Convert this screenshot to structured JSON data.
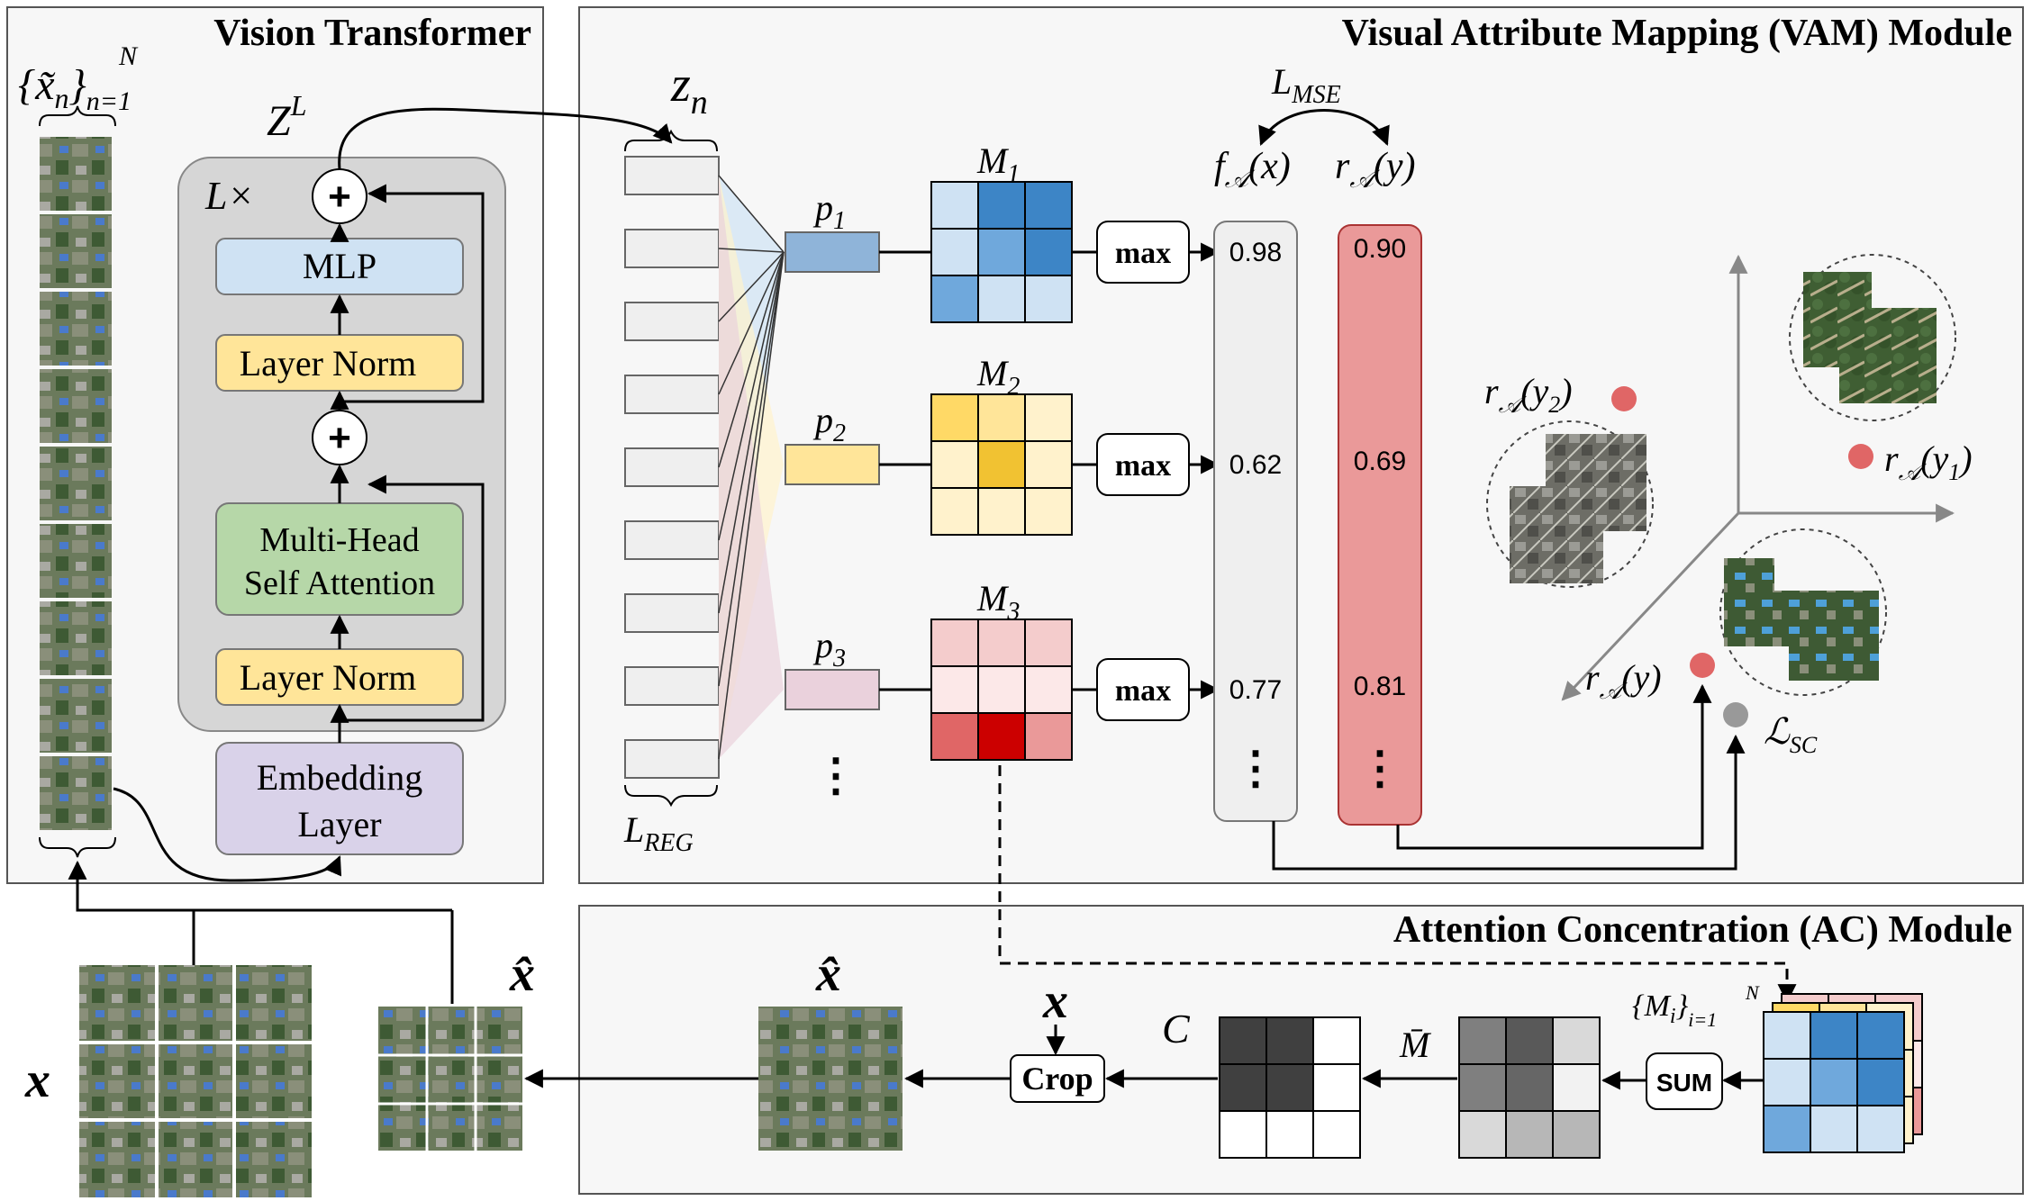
{
  "titles": {
    "vit": "Vision Transformer",
    "vam": "Visual Attribute Mapping (VAM) Module",
    "ac": "Attention Concentration (AC) Module"
  },
  "vit": {
    "patch_set_base": "{x̃",
    "patch_set_sub": "n",
    "patch_set_close": "}",
    "patch_set_subscript": "n=1",
    "patch_set_superscript": "N",
    "zl_base": "Z",
    "zl_sup": "L",
    "repeat_label": "L×",
    "blocks": {
      "mlp": "MLP",
      "layer_norm_top": "Layer Norm",
      "mhsa_line1": "Multi-Head",
      "mhsa_line2": "Self Attention",
      "layer_norm_bottom": "Layer Norm",
      "embed_line1": "Embedding",
      "embed_line2": "Layer"
    },
    "plus": "+",
    "colors": {
      "panel": "#d6d6d6",
      "mlp": "#cfe2f3",
      "layer_norm": "#ffe599",
      "mhsa": "#b6d7a8",
      "embed": "#d9d2e9"
    }
  },
  "vam": {
    "zn_base": "z",
    "zn_sub": "n",
    "lreg_base": "L",
    "lreg_sub": "REG",
    "lmse_base": "L",
    "lmse_sub": "MSE",
    "f_label": {
      "base": "f",
      "sub": "𝒜",
      "arg": "(x)"
    },
    "r_label": {
      "base": "r",
      "sub": "𝒜",
      "arg": "(y)"
    },
    "prototypes": [
      {
        "label_base": "p",
        "label_sub": "1",
        "color": "#8fb4d9"
      },
      {
        "label_base": "p",
        "label_sub": "2",
        "color": "#ffe599"
      },
      {
        "label_base": "p",
        "label_sub": "3",
        "color": "#ead1dc"
      }
    ],
    "maps": [
      {
        "label_base": "M",
        "label_sub": "1",
        "cells": [
          "#cfe2f3",
          "#3d85c6",
          "#3d85c6",
          "#cfe2f3",
          "#6fa8dc",
          "#3d85c6",
          "#6fa8dc",
          "#cfe2f3",
          "#cfe2f3"
        ]
      },
      {
        "label_base": "M",
        "label_sub": "2",
        "cells": [
          "#ffd966",
          "#ffe599",
          "#fff2cc",
          "#fff2cc",
          "#f1c232",
          "#fff2cc",
          "#fff2cc",
          "#fff2cc",
          "#fff2cc"
        ]
      },
      {
        "label_base": "M",
        "label_sub": "3",
        "cells": [
          "#f4cccc",
          "#f4cccc",
          "#f4cccc",
          "#fce8e8",
          "#fce8e8",
          "#fce8e8",
          "#e06666",
          "#cc0000",
          "#ea9999"
        ]
      }
    ],
    "max_label": "max",
    "f_values": [
      "0.98",
      "0.62",
      "0.77"
    ],
    "r_values": [
      "0.90",
      "0.69",
      "0.81"
    ],
    "vdots": "⋮",
    "embed_space": {
      "r_y2": {
        "base": "r",
        "sub": "𝒜",
        "arg": "(y",
        "argsub": "2",
        "close": ")"
      },
      "r_y1": {
        "base": "r",
        "sub": "𝒜",
        "arg": "(y",
        "argsub": "1",
        "close": ")"
      },
      "r_y": {
        "base": "r",
        "sub": "𝒜",
        "arg": "(y)"
      },
      "lsc_base": "ℒ",
      "lsc_sub": "SC"
    },
    "colors": {
      "f_column": "#efefef",
      "r_column": "#ea9999",
      "point": "#e06666",
      "point_gray": "#999999"
    }
  },
  "ac": {
    "x_label": "x",
    "xhat_label": "x̂",
    "crop_label": "Crop",
    "c_label": "C",
    "mbar_label": "M̄",
    "sum_label": "SUM",
    "mi_set": {
      "base": "{M",
      "sub": "i",
      "close": "}",
      "subscript": "i=1",
      "superscript": "N"
    },
    "c_cells": [
      "#404040",
      "#404040",
      "#ffffff",
      "#404040",
      "#404040",
      "#ffffff",
      "#ffffff",
      "#ffffff",
      "#ffffff"
    ],
    "mbar_cells": [
      "#7f7f7f",
      "#595959",
      "#d9d9d9",
      "#7f7f7f",
      "#666666",
      "#f2f2f2",
      "#d9d9d9",
      "#b7b7b7",
      "#b7b7b7"
    ]
  }
}
